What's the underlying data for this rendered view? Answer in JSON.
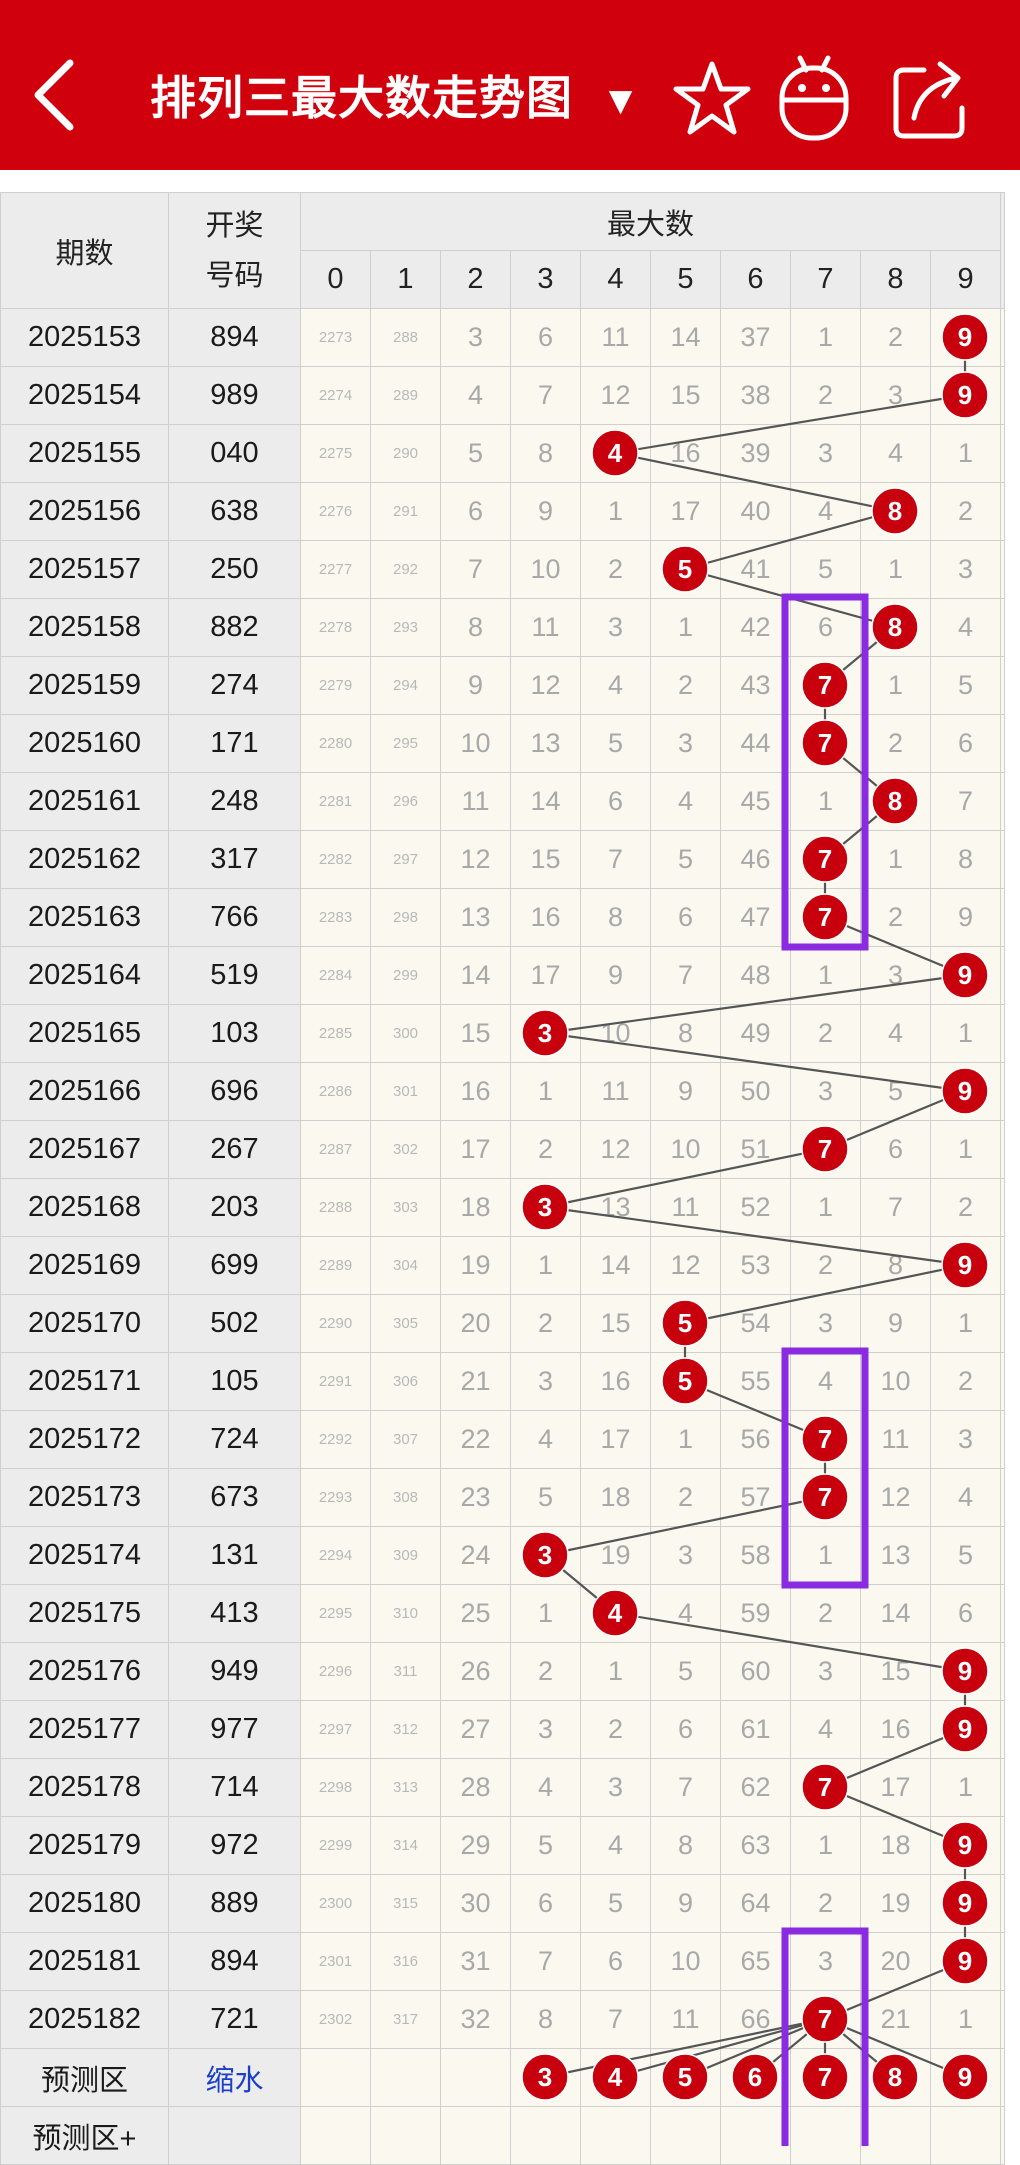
{
  "header": {
    "title": "排列三最大数走势图",
    "dropdown_glyph": "▼",
    "icons": [
      "back-arrow-icon",
      "star-icon",
      "robot-icon",
      "share-icon"
    ],
    "background_color": "#d0000c"
  },
  "table": {
    "col_period": "期数",
    "col_number_line1": "开奖",
    "col_number_line2": "号码",
    "col_group": "最大数",
    "digits": [
      "0",
      "1",
      "2",
      "3",
      "4",
      "5",
      "6",
      "7",
      "8",
      "9"
    ],
    "rows": [
      {
        "period": "2025153",
        "number": "894",
        "cells": [
          "2273",
          "288",
          "3",
          "6",
          "11",
          "14",
          "37",
          "1",
          "2",
          "9"
        ],
        "max": 9
      },
      {
        "period": "2025154",
        "number": "989",
        "cells": [
          "2274",
          "289",
          "4",
          "7",
          "12",
          "15",
          "38",
          "2",
          "3",
          "9"
        ],
        "max": 9
      },
      {
        "period": "2025155",
        "number": "040",
        "cells": [
          "2275",
          "290",
          "5",
          "8",
          "4",
          "16",
          "39",
          "3",
          "4",
          "1"
        ],
        "max": 4
      },
      {
        "period": "2025156",
        "number": "638",
        "cells": [
          "2276",
          "291",
          "6",
          "9",
          "1",
          "17",
          "40",
          "4",
          "8",
          "2"
        ],
        "max": 8
      },
      {
        "period": "2025157",
        "number": "250",
        "cells": [
          "2277",
          "292",
          "7",
          "10",
          "2",
          "5",
          "41",
          "5",
          "1",
          "3"
        ],
        "max": 5
      },
      {
        "period": "2025158",
        "number": "882",
        "cells": [
          "2278",
          "293",
          "8",
          "11",
          "3",
          "1",
          "42",
          "6",
          "8",
          "4"
        ],
        "max": 8
      },
      {
        "period": "2025159",
        "number": "274",
        "cells": [
          "2279",
          "294",
          "9",
          "12",
          "4",
          "2",
          "43",
          "7",
          "1",
          "5"
        ],
        "max": 7
      },
      {
        "period": "2025160",
        "number": "171",
        "cells": [
          "2280",
          "295",
          "10",
          "13",
          "5",
          "3",
          "44",
          "7",
          "2",
          "6"
        ],
        "max": 7
      },
      {
        "period": "2025161",
        "number": "248",
        "cells": [
          "2281",
          "296",
          "11",
          "14",
          "6",
          "4",
          "45",
          "1",
          "8",
          "7"
        ],
        "max": 8
      },
      {
        "period": "2025162",
        "number": "317",
        "cells": [
          "2282",
          "297",
          "12",
          "15",
          "7",
          "5",
          "46",
          "7",
          "1",
          "8"
        ],
        "max": 7
      },
      {
        "period": "2025163",
        "number": "766",
        "cells": [
          "2283",
          "298",
          "13",
          "16",
          "8",
          "6",
          "47",
          "7",
          "2",
          "9"
        ],
        "max": 7
      },
      {
        "period": "2025164",
        "number": "519",
        "cells": [
          "2284",
          "299",
          "14",
          "17",
          "9",
          "7",
          "48",
          "1",
          "3",
          "9"
        ],
        "max": 9
      },
      {
        "period": "2025165",
        "number": "103",
        "cells": [
          "2285",
          "300",
          "15",
          "3",
          "10",
          "8",
          "49",
          "2",
          "4",
          "1"
        ],
        "max": 3
      },
      {
        "period": "2025166",
        "number": "696",
        "cells": [
          "2286",
          "301",
          "16",
          "1",
          "11",
          "9",
          "50",
          "3",
          "5",
          "9"
        ],
        "max": 9
      },
      {
        "period": "2025167",
        "number": "267",
        "cells": [
          "2287",
          "302",
          "17",
          "2",
          "12",
          "10",
          "51",
          "7",
          "6",
          "1"
        ],
        "max": 7
      },
      {
        "period": "2025168",
        "number": "203",
        "cells": [
          "2288",
          "303",
          "18",
          "3",
          "13",
          "11",
          "52",
          "1",
          "7",
          "2"
        ],
        "max": 3
      },
      {
        "period": "2025169",
        "number": "699",
        "cells": [
          "2289",
          "304",
          "19",
          "1",
          "14",
          "12",
          "53",
          "2",
          "8",
          "9"
        ],
        "max": 9
      },
      {
        "period": "2025170",
        "number": "502",
        "cells": [
          "2290",
          "305",
          "20",
          "2",
          "15",
          "5",
          "54",
          "3",
          "9",
          "1"
        ],
        "max": 5
      },
      {
        "period": "2025171",
        "number": "105",
        "cells": [
          "2291",
          "306",
          "21",
          "3",
          "16",
          "5",
          "55",
          "4",
          "10",
          "2"
        ],
        "max": 5
      },
      {
        "period": "2025172",
        "number": "724",
        "cells": [
          "2292",
          "307",
          "22",
          "4",
          "17",
          "1",
          "56",
          "7",
          "11",
          "3"
        ],
        "max": 7
      },
      {
        "period": "2025173",
        "number": "673",
        "cells": [
          "2293",
          "308",
          "23",
          "5",
          "18",
          "2",
          "57",
          "7",
          "12",
          "4"
        ],
        "max": 7
      },
      {
        "period": "2025174",
        "number": "131",
        "cells": [
          "2294",
          "309",
          "24",
          "3",
          "19",
          "3",
          "58",
          "1",
          "13",
          "5"
        ],
        "max": 3
      },
      {
        "period": "2025175",
        "number": "413",
        "cells": [
          "2295",
          "310",
          "25",
          "1",
          "4",
          "4",
          "59",
          "2",
          "14",
          "6"
        ],
        "max": 4
      },
      {
        "period": "2025176",
        "number": "949",
        "cells": [
          "2296",
          "311",
          "26",
          "2",
          "1",
          "5",
          "60",
          "3",
          "15",
          "9"
        ],
        "max": 9
      },
      {
        "period": "2025177",
        "number": "977",
        "cells": [
          "2297",
          "312",
          "27",
          "3",
          "2",
          "6",
          "61",
          "4",
          "16",
          "9"
        ],
        "max": 9
      },
      {
        "period": "2025178",
        "number": "714",
        "cells": [
          "2298",
          "313",
          "28",
          "4",
          "3",
          "7",
          "62",
          "7",
          "17",
          "1"
        ],
        "max": 7
      },
      {
        "period": "2025179",
        "number": "972",
        "cells": [
          "2299",
          "314",
          "29",
          "5",
          "4",
          "8",
          "63",
          "1",
          "18",
          "9"
        ],
        "max": 9
      },
      {
        "period": "2025180",
        "number": "889",
        "cells": [
          "2300",
          "315",
          "30",
          "6",
          "5",
          "9",
          "64",
          "2",
          "19",
          "9"
        ],
        "max": 9
      },
      {
        "period": "2025181",
        "number": "894",
        "cells": [
          "2301",
          "316",
          "31",
          "7",
          "6",
          "10",
          "65",
          "3",
          "20",
          "9"
        ],
        "max": 9
      },
      {
        "period": "2025182",
        "number": "721",
        "cells": [
          "2302",
          "317",
          "32",
          "8",
          "7",
          "11",
          "66",
          "7",
          "21",
          "1"
        ],
        "max": 7
      }
    ],
    "prediction_row": {
      "label": "预测区",
      "link": "缩水",
      "balls": [
        "3",
        "4",
        "5",
        "6",
        "7",
        "8",
        "9"
      ]
    },
    "prediction_row_plus": {
      "label": "预测区+"
    }
  },
  "colors": {
    "ball": "#c8000e",
    "highlight_box": "#8a2be2",
    "line": "#555555"
  }
}
